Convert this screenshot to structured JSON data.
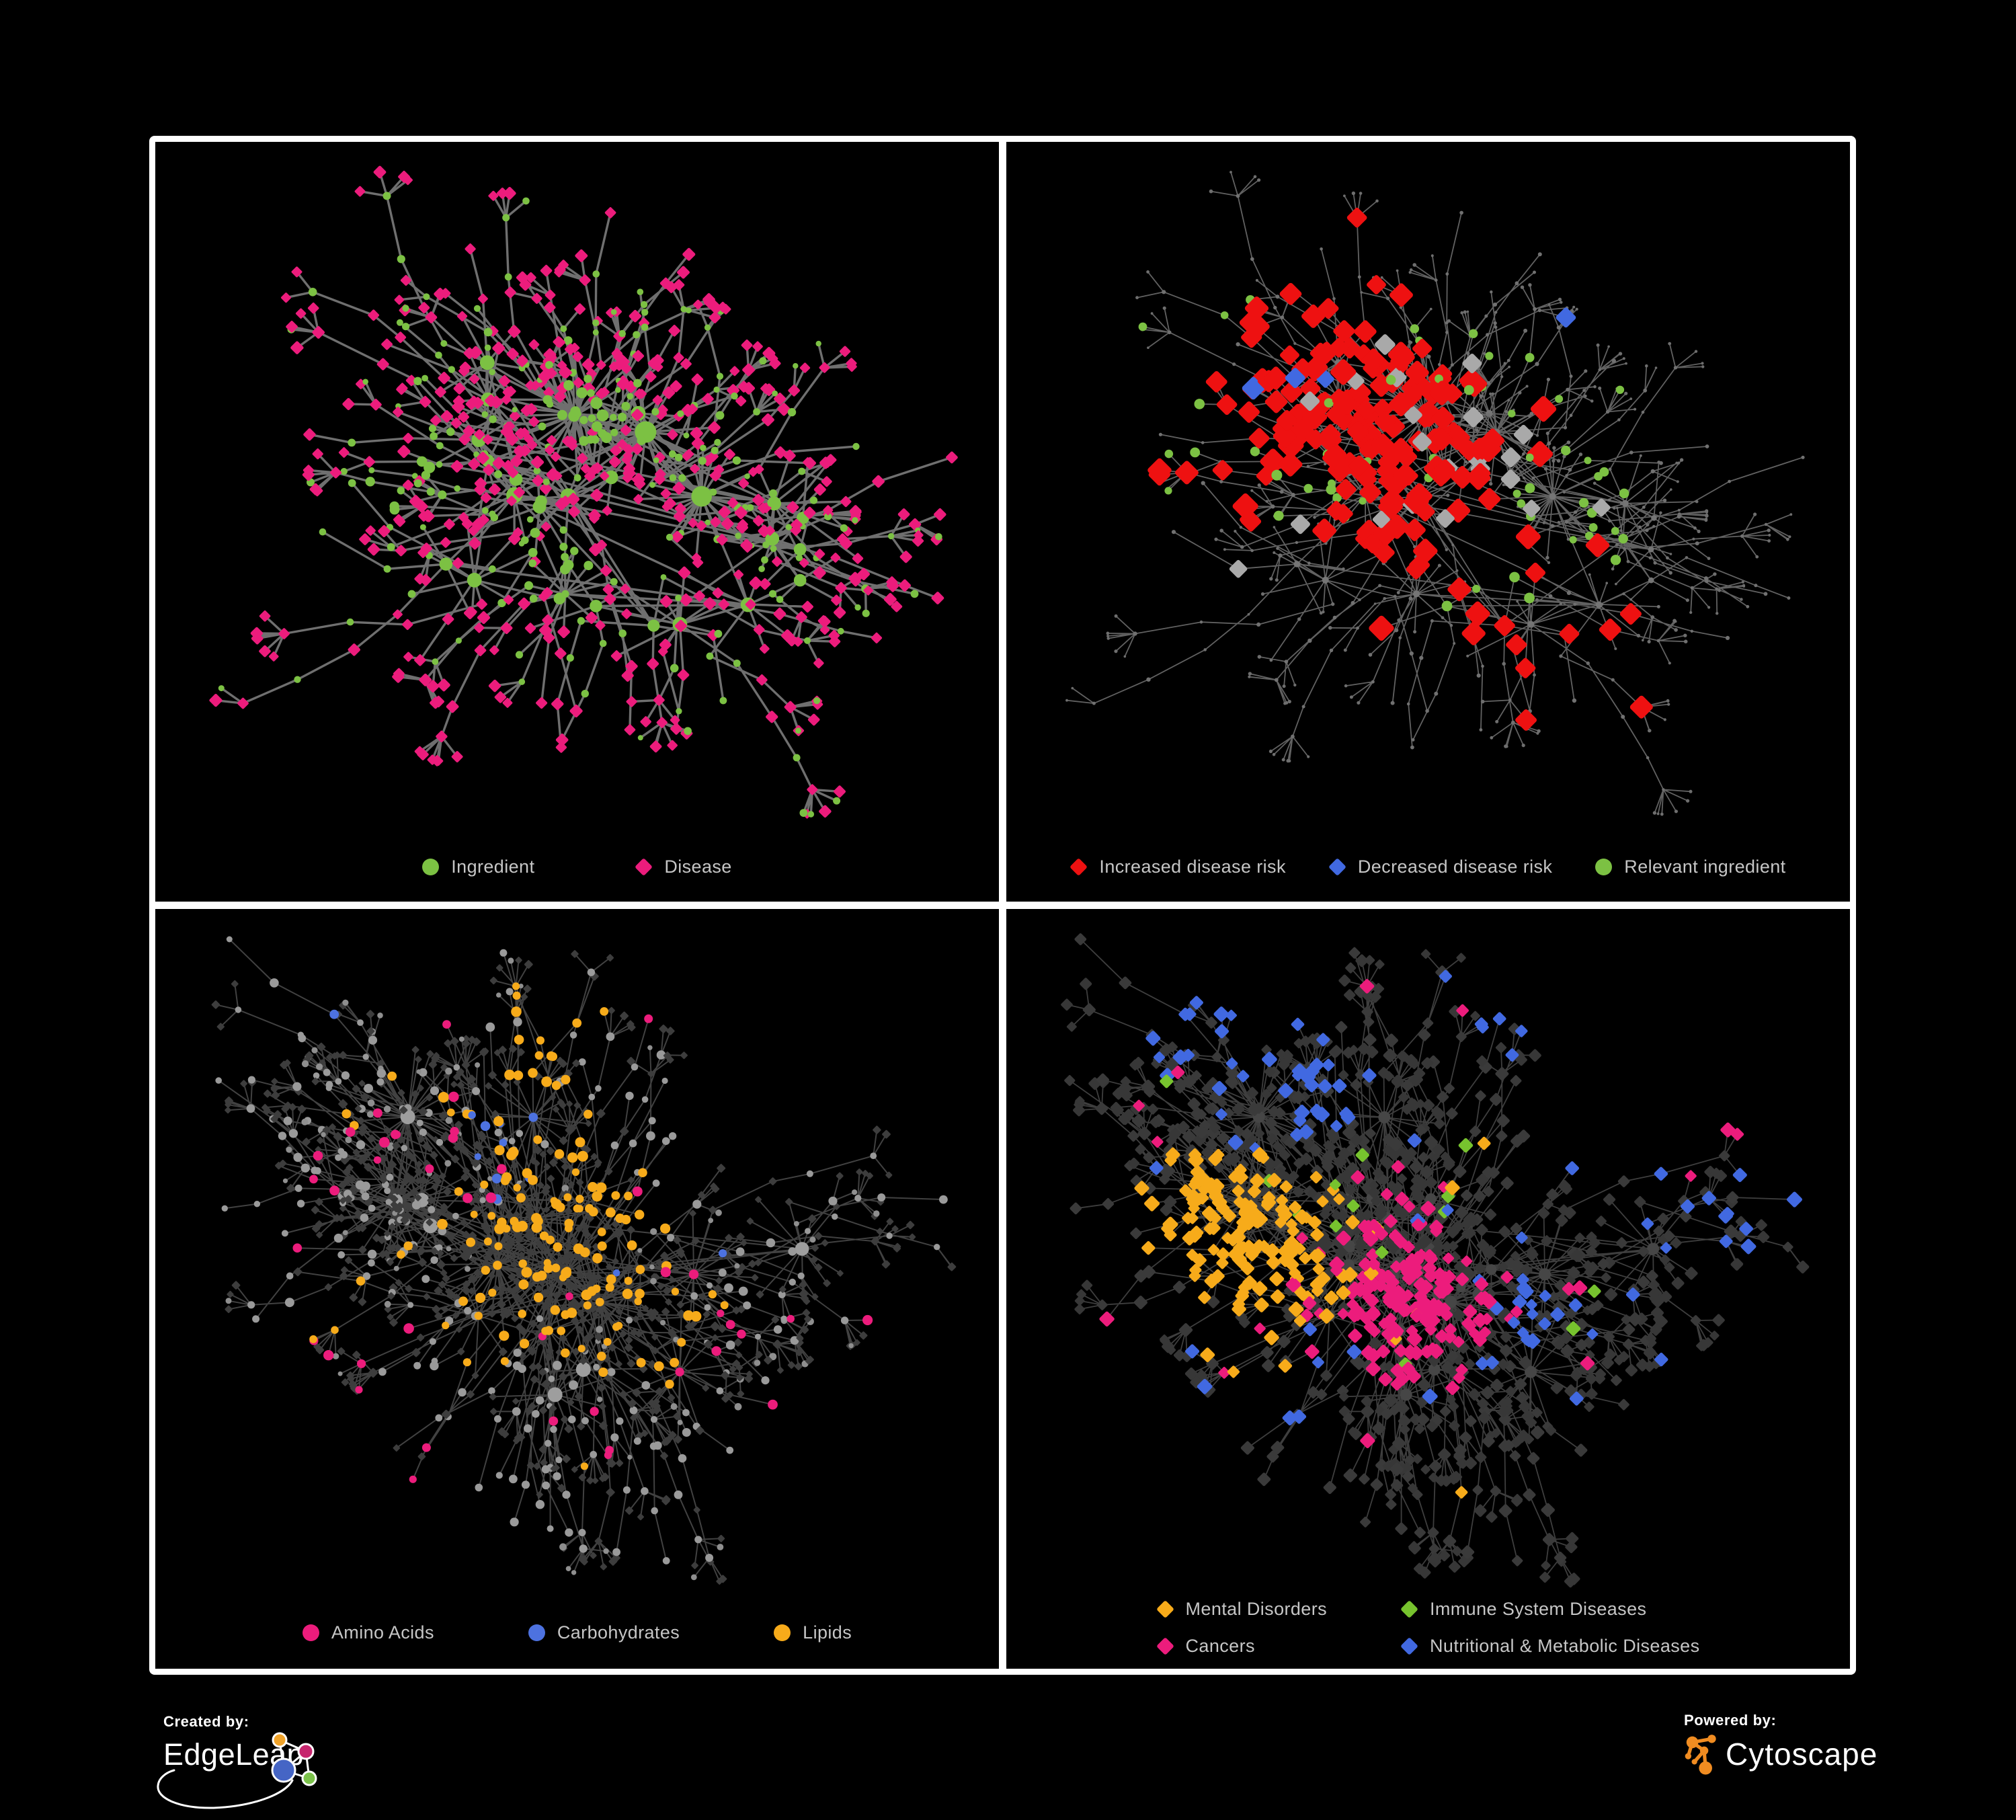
{
  "page": {
    "background": "#000000",
    "frame_color": "#ffffff"
  },
  "footer": {
    "created_by": "Created by:",
    "brand": "EdgeLeap",
    "powered_by": "Powered by:",
    "engine": "Cytoscape",
    "edgeleap": {
      "orange": "#f0a32a",
      "pink": "#c6256d",
      "blue": "#4565c5",
      "green": "#7bc24a"
    },
    "cytoscape": {
      "icon": "#f08c21"
    }
  },
  "topologies": {
    "A": {
      "seed": 20,
      "hubs": 26,
      "superHubs": 3,
      "spreadX": 330,
      "spreadY": 240,
      "leafMin": 4,
      "leafMax": 18,
      "leafDist": 52,
      "chainProb": 0.4,
      "tipFanProb": 0.45,
      "extraEdges": 10
    },
    "B": {
      "seed": 77,
      "hubs": 30,
      "superHubs": 4,
      "spreadX": 330,
      "spreadY": 235,
      "leafMin": 4,
      "leafMax": 24,
      "leafDist": 50,
      "chainProb": 0.38,
      "tipFanProb": 0.5,
      "extraEdges": 14
    }
  },
  "panels": [
    {
      "name": "ingredient-disease-network",
      "topology": "A",
      "styleSeed": 101,
      "edge": {
        "color": "#787878",
        "width": 3.4,
        "opacity": 0.92
      },
      "legend": {
        "rows": 1,
        "items": [
          {
            "label": "Ingredient",
            "shape": "circle",
            "color": "#7cc143"
          },
          {
            "label": "Disease",
            "shape": "diamond",
            "color": "#ec1c7c"
          }
        ]
      },
      "base": {
        "hub": [
          {
            "w": 1,
            "shape": "circle",
            "color": "#7cc143",
            "size": [
              8,
              16
            ]
          }
        ],
        "mid": [
          {
            "w": 0.45,
            "shape": "circle",
            "color": "#7cc143",
            "size": [
              4.5,
              6.5
            ]
          },
          {
            "w": 0.55,
            "shape": "diamond",
            "color": "#ec1c7c",
            "size": [
              6,
              7.5
            ]
          }
        ],
        "leaf": [
          {
            "w": 0.24,
            "shape": "circle",
            "color": "#7cc143",
            "size": [
              4,
              6
            ]
          },
          {
            "w": 0.76,
            "shape": "diamond",
            "color": "#ec1c7c",
            "size": [
              5.5,
              7.5
            ]
          }
        ]
      },
      "rules": [
        {
          "name": "ingredient-cluster",
          "applyTo": "any",
          "shape": "circle",
          "color": "#7cc143",
          "size": [
            5,
            9
          ],
          "base": 0.85,
          "sigma": 0.038,
          "scatter": 0,
          "centers": [
            [
              0.52,
              0.38
            ],
            [
              0.44,
              0.6
            ],
            [
              0.27,
              0.47
            ]
          ]
        }
      ]
    },
    {
      "name": "disease-risk-network",
      "topology": "A",
      "styleSeed": 202,
      "edge": {
        "color": "#696969",
        "width": 1.8,
        "opacity": 0.92
      },
      "legend": {
        "rows": 1,
        "items": [
          {
            "label": "Increased disease risk",
            "shape": "diamond",
            "color": "#ee1111"
          },
          {
            "label": "Decreased disease risk",
            "shape": "diamond",
            "color": "#4169e1"
          },
          {
            "label": "Relevant ingredient",
            "shape": "circle",
            "color": "#7cc143"
          }
        ]
      },
      "base": {
        "hub": [
          {
            "w": 1,
            "shape": "circle",
            "color": "#757575",
            "size": [
              3,
              5
            ]
          }
        ],
        "mid": [
          {
            "w": 1,
            "shape": "circle",
            "color": "#717171",
            "size": [
              2.2,
              3.2
            ]
          }
        ],
        "leaf": [
          {
            "w": 1,
            "shape": "circle",
            "color": "#6e6e6e",
            "size": [
              1.8,
              2.8
            ]
          }
        ]
      },
      "rules": [
        {
          "name": "increased-risk",
          "applyTo": "any",
          "shape": "diamond",
          "color": "#ee1111",
          "size": [
            11,
            15
          ],
          "base": 0.5,
          "sigma": 0.08,
          "scatter": 0.002,
          "centers": [
            [
              0.33,
              0.3
            ],
            [
              0.45,
              0.4
            ],
            [
              0.27,
              0.44
            ],
            [
              0.47,
              0.52
            ],
            [
              0.6,
              0.7
            ]
          ]
        },
        {
          "name": "decreased-risk",
          "applyTo": "any",
          "shape": "diamond",
          "color": "#4169e1",
          "size": [
            10,
            13
          ],
          "base": 0.5,
          "sigma": 0.045,
          "scatter": 0.001,
          "centers": [
            [
              0.27,
              0.36
            ],
            [
              0.84,
              0.17
            ]
          ]
        },
        {
          "name": "neutral-risk",
          "applyTo": "any",
          "shape": "diamond",
          "color": "#a9a9a9",
          "size": [
            10,
            12
          ],
          "base": 0.12,
          "sigma": 0.1,
          "scatter": 0.001,
          "centers": [
            [
              0.37,
              0.4
            ],
            [
              0.52,
              0.5
            ]
          ]
        },
        {
          "name": "relevant-ingredient",
          "applyTo": "any",
          "shape": "circle",
          "color": "#7cc143",
          "size": [
            5.5,
            8
          ],
          "base": 0.28,
          "sigma": 0.1,
          "scatter": 0.003,
          "centers": [
            [
              0.3,
              0.33
            ],
            [
              0.15,
              0.32
            ],
            [
              0.48,
              0.45
            ],
            [
              0.62,
              0.55
            ]
          ]
        }
      ]
    },
    {
      "name": "nutrient-class-network",
      "topology": "B",
      "styleSeed": 303,
      "edge": {
        "color": "#9a9a9a",
        "width": 2,
        "opacity": 0.42
      },
      "legend": {
        "rows": 1,
        "items": [
          {
            "label": "Amino Acids",
            "shape": "circle",
            "color": "#ec1c7c"
          },
          {
            "label": "Carbohydrates",
            "shape": "circle",
            "color": "#4d72e0"
          },
          {
            "label": "Lipids",
            "shape": "circle",
            "color": "#f7ab1a"
          }
        ]
      },
      "base": {
        "hub": [
          {
            "w": 1,
            "shape": "circle",
            "color": "#9e9e9e",
            "size": [
              7,
              11
            ]
          }
        ],
        "mid": [
          {
            "w": 0.8,
            "shape": "circle",
            "color": "#9a9a9a",
            "size": [
              4.5,
              7
            ]
          },
          {
            "w": 0.2,
            "shape": "diamond",
            "color": "#3d3d3d",
            "size": [
              4,
              5.5
            ]
          }
        ],
        "leaf": [
          {
            "w": 0.18,
            "shape": "circle",
            "color": "#8f8f8f",
            "size": [
              3.5,
              5.5
            ]
          },
          {
            "w": 0.82,
            "shape": "diamond",
            "color": "#3d3d3d",
            "size": [
              3.8,
              5
            ]
          }
        ]
      },
      "rules": [
        {
          "name": "lipids",
          "applyTo": "circle",
          "shape": "circle",
          "color": "#f7ab1a",
          "size": [
            5.5,
            8
          ],
          "base": 0.8,
          "sigma": 0.07,
          "scatter": 0.03,
          "centers": [
            [
              0.5,
              0.4
            ],
            [
              0.42,
              0.5
            ],
            [
              0.56,
              0.57
            ],
            [
              0.42,
              0.18
            ]
          ]
        },
        {
          "name": "carbohydrates",
          "applyTo": "circle",
          "shape": "circle",
          "color": "#4d72e0",
          "size": [
            5,
            7.5
          ],
          "base": 0.4,
          "sigma": 0.05,
          "scatter": 0.012,
          "centers": [
            [
              0.5,
              0.42
            ],
            [
              0.42,
              0.3
            ]
          ]
        },
        {
          "name": "amino-acids",
          "applyTo": "circle",
          "shape": "circle",
          "color": "#ec1c7c",
          "size": [
            5.5,
            8
          ],
          "base": 0.18,
          "sigma": 0.1,
          "scatter": 0.035,
          "centers": [
            [
              0.7,
              0.68
            ],
            [
              0.27,
              0.22
            ],
            [
              0.26,
              0.75
            ],
            [
              0.13,
              0.5
            ]
          ]
        }
      ]
    },
    {
      "name": "disease-class-network",
      "topology": "B",
      "styleSeed": 404,
      "edge": {
        "color": "#8a8a8a",
        "width": 1.8,
        "opacity": 0.45
      },
      "legend": {
        "rows": 2,
        "items": [
          {
            "label": "Mental Disorders",
            "shape": "diamond",
            "color": "#f7ab1a"
          },
          {
            "label": "Immune System Diseases",
            "shape": "diamond",
            "color": "#77c32e"
          },
          {
            "label": "Cancers",
            "shape": "diamond",
            "color": "#ec1c7c"
          },
          {
            "label": "Nutritional & Metabolic Diseases",
            "shape": "diamond",
            "color": "#4169e1"
          }
        ]
      },
      "base": {
        "hub": [
          {
            "w": 1,
            "shape": "circle",
            "color": "#464646",
            "size": [
              6,
              9
            ]
          }
        ],
        "mid": [
          {
            "w": 1,
            "shape": "diamond",
            "color": "#3a3a3a",
            "size": [
              6,
              8
            ]
          }
        ],
        "leaf": [
          {
            "w": 1,
            "shape": "diamond",
            "color": "#373737",
            "size": [
              5.5,
              7.5
            ]
          }
        ]
      },
      "rules": [
        {
          "name": "mental-disorders",
          "applyTo": "diamond",
          "shape": "diamond",
          "color": "#f7ab1a",
          "size": [
            6.5,
            9
          ],
          "base": 0.95,
          "sigma": 0.065,
          "scatter": 0.006,
          "centers": [
            [
              0.2,
              0.44
            ],
            [
              0.26,
              0.52
            ]
          ]
        },
        {
          "name": "cancers",
          "applyTo": "diamond",
          "shape": "diamond",
          "color": "#ec1c7c",
          "size": [
            6.5,
            9
          ],
          "base": 0.75,
          "sigma": 0.055,
          "scatter": 0.008,
          "centers": [
            [
              0.45,
              0.52
            ],
            [
              0.52,
              0.58
            ],
            [
              0.4,
              0.6
            ],
            [
              0.88,
              0.28
            ]
          ]
        },
        {
          "name": "nutritional-metabolic",
          "applyTo": "diamond",
          "shape": "diamond",
          "color": "#4169e1",
          "size": [
            6.5,
            9
          ],
          "base": 0.55,
          "sigma": 0.05,
          "scatter": 0.016,
          "centers": [
            [
              0.63,
              0.6
            ],
            [
              0.78,
              0.3
            ],
            [
              0.88,
              0.45
            ],
            [
              0.3,
              0.72
            ],
            [
              0.58,
              0.08
            ],
            [
              0.9,
              0.16
            ],
            [
              0.32,
              0.22
            ],
            [
              0.15,
              0.15
            ]
          ]
        },
        {
          "name": "immune-system",
          "applyTo": "diamond",
          "shape": "diamond",
          "color": "#77c32e",
          "size": [
            6.5,
            8.5
          ],
          "base": 0.045,
          "sigma": 0.12,
          "scatter": 0.004,
          "centers": [
            [
              0.48,
              0.4
            ]
          ]
        }
      ]
    }
  ]
}
